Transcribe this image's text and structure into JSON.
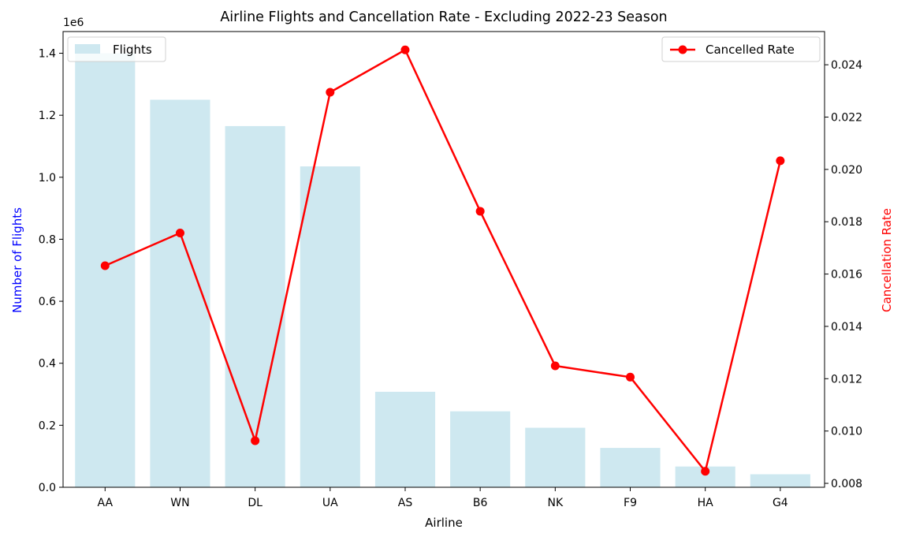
{
  "chart_data": {
    "type": "bar",
    "title": "Airline Flights and Cancellation Rate - Excluding 2022-23 Season",
    "xlabel": "Airline",
    "ylabel": "Number of Flights",
    "y2label": "Cancellation Rate",
    "y_offset_label": "1e6",
    "categories": [
      "AA",
      "WN",
      "DL",
      "UA",
      "AS",
      "B6",
      "NK",
      "F9",
      "HA",
      "G4"
    ],
    "ylim": [
      0,
      1.47
    ],
    "y_ticks": [
      0.0,
      0.2,
      0.4,
      0.6,
      0.8,
      1.0,
      1.2,
      1.4
    ],
    "y_tick_labels": [
      "0.0",
      "0.2",
      "0.4",
      "0.6",
      "0.8",
      "1.0",
      "1.2",
      "1.4"
    ],
    "y2lim": [
      0.00785,
      0.02527
    ],
    "y2_ticks": [
      0.008,
      0.01,
      0.012,
      0.014,
      0.016,
      0.018,
      0.02,
      0.022,
      0.024
    ],
    "y2_tick_labels": [
      "0.008",
      "0.010",
      "0.012",
      "0.014",
      "0.016",
      "0.018",
      "0.020",
      "0.022",
      "0.024"
    ],
    "grid": false,
    "series": [
      {
        "name": "Flights",
        "type": "bar",
        "axis": "left",
        "color": "#add8e6",
        "values": [
          1.4,
          1.25,
          1.165,
          1.035,
          0.308,
          0.245,
          0.192,
          0.127,
          0.067,
          0.042
        ]
      },
      {
        "name": "Cancelled Rate",
        "type": "line",
        "axis": "right",
        "color": "#ff0000",
        "values": [
          0.01632,
          0.01757,
          0.00963,
          0.02295,
          0.02457,
          0.0184,
          0.01249,
          0.01206,
          0.00846,
          0.02033
        ]
      }
    ],
    "legends": [
      {
        "placement": "upper-left",
        "entries": [
          "Flights"
        ]
      },
      {
        "placement": "upper-right",
        "entries": [
          "Cancelled Rate"
        ]
      }
    ],
    "colors": {
      "ylabel": "#0000ff",
      "y2label": "#ff0000"
    }
  }
}
